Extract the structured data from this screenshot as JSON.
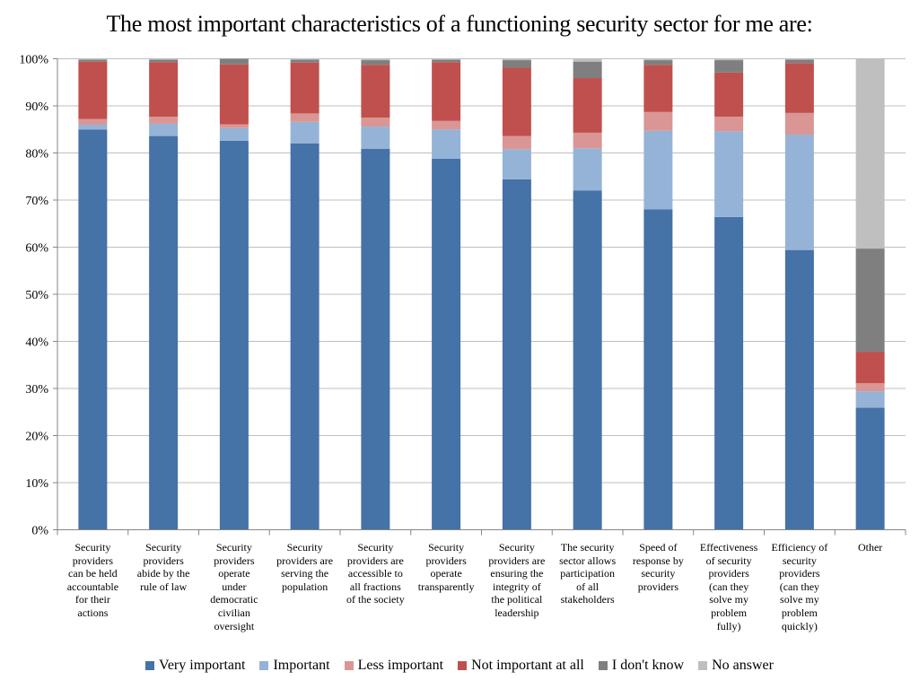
{
  "chart_data": {
    "type": "bar",
    "stacked": true,
    "title": "The most important characteristics of a functioning security sector for me are:",
    "ylim": [
      0,
      100
    ],
    "y_ticks": [
      "0%",
      "10%",
      "20%",
      "30%",
      "40%",
      "50%",
      "60%",
      "70%",
      "80%",
      "90%",
      "100%"
    ],
    "grid": true,
    "legend_position": "bottom",
    "categories": [
      "Security providers can be held accountable for their actions",
      "Security providers abide by the rule of law",
      "Security providers operate under democratic civilian oversight",
      "Security providers are serving the population",
      "Security providers are accessible to all fractions of the society",
      "Security providers operate transparently",
      "Security providers are ensuring the integrity of the political leadership",
      "The security sector allows participation of all stakeholders",
      "Speed of response by security providers",
      "Effectiveness of security providers (can they solve my problem fully)",
      "Efficiency of security providers (can they solve my problem quickly)",
      "Other"
    ],
    "series": [
      {
        "name": "Very important",
        "color": "#4572a7",
        "values": [
          85.0,
          83.6,
          82.6,
          82.0,
          80.9,
          78.8,
          74.4,
          72.0,
          68.0,
          66.4,
          59.4,
          25.9
        ]
      },
      {
        "name": "Important",
        "color": "#95b3d7",
        "values": [
          1.0,
          2.6,
          2.7,
          4.6,
          4.7,
          6.2,
          6.4,
          9.0,
          16.7,
          18.2,
          24.5,
          3.5
        ]
      },
      {
        "name": "Less important",
        "color": "#d99694",
        "values": [
          1.2,
          1.5,
          0.8,
          1.8,
          1.9,
          1.8,
          2.8,
          3.3,
          4.0,
          3.1,
          4.6,
          1.7
        ]
      },
      {
        "name": "Not important at all",
        "color": "#c0504d",
        "values": [
          12.2,
          11.6,
          12.7,
          10.8,
          11.2,
          12.5,
          14.5,
          11.6,
          10.0,
          9.4,
          10.6,
          6.7
        ]
      },
      {
        "name": "I don't know",
        "color": "#7f7f7f",
        "values": [
          0.4,
          0.5,
          1.2,
          0.6,
          1.0,
          0.5,
          1.6,
          3.5,
          1.0,
          2.6,
          0.7,
          21.9
        ]
      },
      {
        "name": "No answer",
        "color": "#bfbfbf",
        "values": [
          0.2,
          0.2,
          0.0,
          0.2,
          0.3,
          0.2,
          0.3,
          0.6,
          0.3,
          0.3,
          0.2,
          40.3
        ]
      }
    ],
    "category_labels_display": [
      "Security\nproviders\ncan be held\naccountable\nfor their\nactions",
      "Security\nproviders\nabide by the\nrule of law",
      "Security\nproviders\noperate\nunder\ndemocratic\ncivilian\noversight",
      "Security\nproviders are\nserving the\npopulation",
      "Security\nproviders are\naccessible to\nall fractions\nof the society",
      "Security\nproviders\noperate\ntransparently",
      "Security\nproviders are\nensuring the\nintegrity of\nthe political\nleadership",
      "The security\nsector allows\nparticipation\nof all\nstakeholders",
      "Speed of\nresponse by\nsecurity\nproviders",
      "Effectiveness\nof security\nproviders\n(can they\nsolve my\nproblem\nfully)",
      "Efficiency of\nsecurity\nproviders\n(can they\nsolve my\nproblem\nquickly)",
      "Other"
    ]
  }
}
